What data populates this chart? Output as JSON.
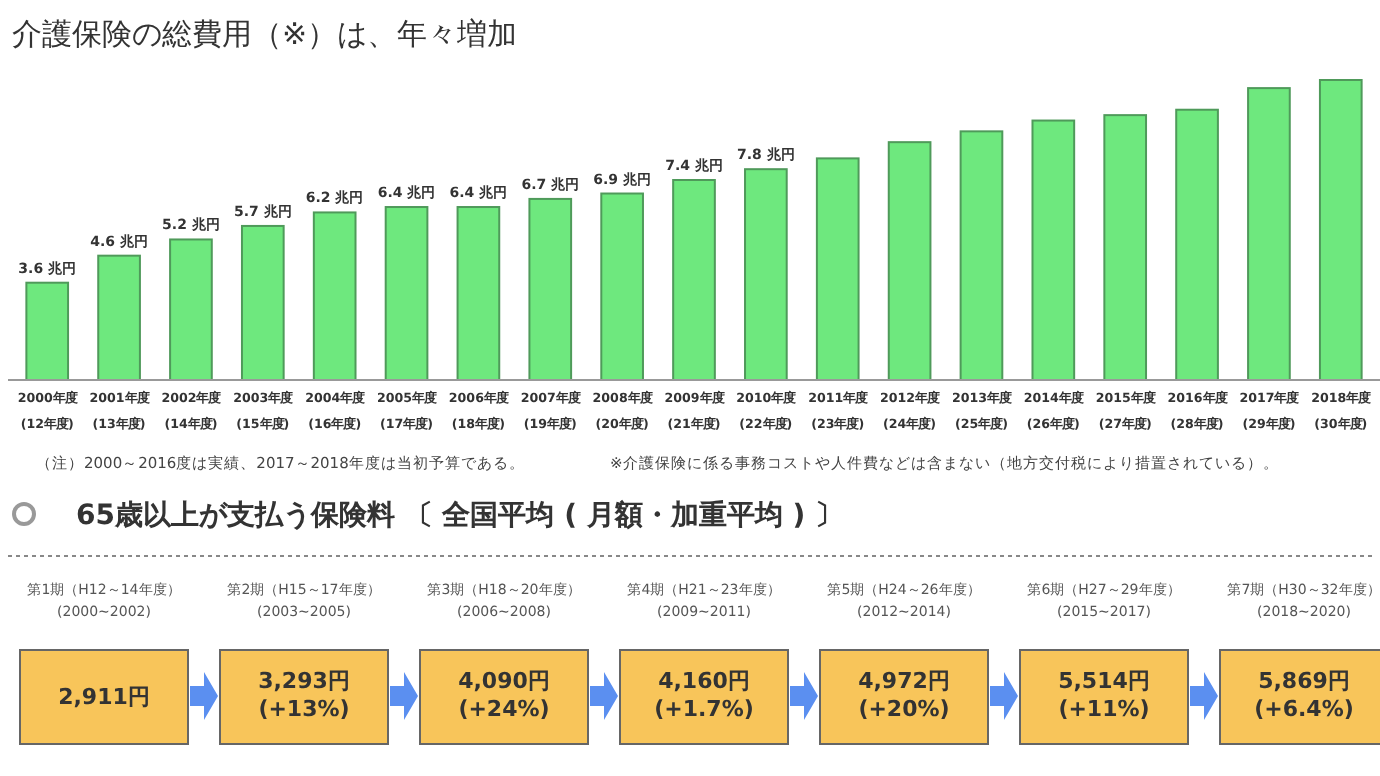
{
  "chart_data": [
    {
      "type": "bar",
      "title": "介護保険の総費用（※）は、年々増加",
      "categories": [
        "2000年度\n(12年度)",
        "2001年度\n(13年度)",
        "2002年度\n(14年度)",
        "2003年度\n(15年度)",
        "2004年度\n(16年度)",
        "2005年度\n(17年度)",
        "2006年度\n(18年度)",
        "2007年度\n(19年度)",
        "2008年度\n(20年度)",
        "2009年度\n(21年度)",
        "2010年度\n(22年度)",
        "2011年度\n(23年度)",
        "2012年度\n(24年度)",
        "2013年度\n(25年度)",
        "2014年度\n(26年度)",
        "2015年度\n(27年度)",
        "2016年度\n(28年度)",
        "2017年度\n(29年度)",
        "2018年度\n(30年度)"
      ],
      "values": [
        3.6,
        4.6,
        5.2,
        5.7,
        6.2,
        6.4,
        6.4,
        6.7,
        6.9,
        7.4,
        7.8,
        8.2,
        8.8,
        9.2,
        9.6,
        9.8,
        10.0,
        10.8,
        11.1
      ],
      "value_labels": [
        "3.6 兆円",
        "4.6 兆円",
        "5.2 兆円",
        "5.7 兆円",
        "6.2 兆円",
        "6.4 兆円",
        "6.4 兆円",
        "6.7 兆円",
        "6.9 兆円",
        "7.4 兆円",
        "7.8 兆円",
        null,
        null,
        null,
        null,
        null,
        null,
        null,
        null
      ],
      "color": "#6ee87e",
      "ylim": [
        0,
        11.1
      ],
      "annotations": [
        "（注）2000～2016度は実績、2017～2018年度は当初予算である。",
        "※介護保険に係る事務コストや人件費などは含まない（地方交付税により措置されている）。"
      ]
    },
    {
      "type": "other",
      "title": "65歳以上が支払う保険料 〔 全国平均 ( 月額・加重平均 ) 〕",
      "categories": [
        "第1期（H12～14年度）\n(2000~2002)",
        "第2期（H15～17年度）\n(2003~2005)",
        "第3期（H18～20年度）\n(2006~2008)",
        "第4期（H21～23年度）\n(2009~2011)",
        "第5期（H24～26年度）\n(2012~2014)",
        "第6期（H27～29年度）\n(2015~2017)",
        "第7期（H30～32年度）\n(2018~2020)"
      ],
      "value_labels": [
        "2,911円",
        "3,293円\n(+13%)",
        "4,090円\n(+24%)",
        "4,160円\n(+1.7%)",
        "4,972円\n(+20%)",
        "5,514円\n(+11%)",
        "5,869円\n(+6.4%)"
      ],
      "color": "#f8c55a"
    }
  ]
}
